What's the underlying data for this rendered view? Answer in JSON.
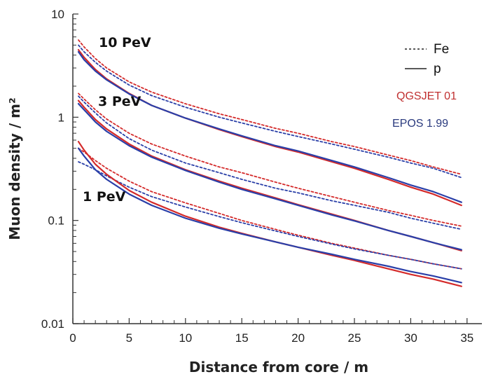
{
  "chart_data": {
    "type": "line",
    "xlabel": "Distance from core / m",
    "ylabel": "Muon density / m²",
    "xlim": [
      0,
      37
    ],
    "ylim": [
      0.01,
      10
    ],
    "yscale": "log",
    "x_ticks": [
      "0",
      "5",
      "10",
      "15",
      "20",
      "25",
      "30",
      "35"
    ],
    "y_ticks": [
      "0.01",
      "0.1",
      "1",
      "10"
    ],
    "grid": false,
    "energy_labels": [
      "10 PeV",
      "3 PeV",
      "1 PeV"
    ],
    "legend": {
      "placement": "top-right",
      "line_styles": [
        {
          "label": "Fe",
          "style": "dashed"
        },
        {
          "label": "p",
          "style": "solid"
        }
      ],
      "models": [
        {
          "label": "QGSJET 01",
          "color": "#d42a2a"
        },
        {
          "label": "EPOS 1.99",
          "color": "#2a3fa8"
        }
      ]
    },
    "colors": {
      "QGSJET 01": "#d42a2a",
      "EPOS 1.99": "#2a3fa8",
      "axis": "#333333"
    },
    "x": [
      0.5,
      1,
      2,
      3,
      5,
      7,
      10,
      13,
      15,
      18,
      20,
      23,
      25,
      28,
      30,
      32,
      34.5
    ],
    "series": [
      {
        "energy": "10 PeV",
        "model": "QGSJET 01",
        "primary": "Fe",
        "values": [
          5.6,
          4.8,
          3.7,
          3.0,
          2.2,
          1.75,
          1.35,
          1.08,
          0.95,
          0.78,
          0.7,
          0.58,
          0.52,
          0.43,
          0.38,
          0.33,
          0.28
        ]
      },
      {
        "energy": "10 PeV",
        "model": "EPOS 1.99",
        "primary": "Fe",
        "values": [
          5.0,
          4.3,
          3.4,
          2.8,
          2.05,
          1.62,
          1.25,
          1.0,
          0.88,
          0.73,
          0.65,
          0.55,
          0.49,
          0.41,
          0.36,
          0.32,
          0.26
        ]
      },
      {
        "energy": "10 PeV",
        "model": "QGSJET 01",
        "primary": "p",
        "values": [
          4.5,
          3.8,
          2.9,
          2.35,
          1.7,
          1.3,
          0.98,
          0.76,
          0.65,
          0.52,
          0.46,
          0.37,
          0.32,
          0.25,
          0.21,
          0.18,
          0.14
        ]
      },
      {
        "energy": "10 PeV",
        "model": "EPOS 1.99",
        "primary": "p",
        "values": [
          4.3,
          3.6,
          2.8,
          2.3,
          1.68,
          1.3,
          0.98,
          0.77,
          0.66,
          0.53,
          0.47,
          0.38,
          0.33,
          0.26,
          0.22,
          0.19,
          0.15
        ]
      },
      {
        "energy": "3 PeV",
        "model": "QGSJET 01",
        "primary": "Fe",
        "values": [
          1.7,
          1.5,
          1.18,
          0.96,
          0.7,
          0.55,
          0.42,
          0.33,
          0.29,
          0.235,
          0.205,
          0.17,
          0.15,
          0.125,
          0.112,
          0.1,
          0.088
        ]
      },
      {
        "energy": "3 PeV",
        "model": "EPOS 1.99",
        "primary": "Fe",
        "values": [
          1.6,
          1.4,
          1.1,
          0.88,
          0.62,
          0.48,
          0.36,
          0.29,
          0.25,
          0.205,
          0.185,
          0.155,
          0.14,
          0.12,
          0.105,
          0.094,
          0.082
        ]
      },
      {
        "energy": "3 PeV",
        "model": "QGSJET 01",
        "primary": "p",
        "values": [
          1.45,
          1.25,
          0.95,
          0.77,
          0.55,
          0.42,
          0.31,
          0.24,
          0.205,
          0.165,
          0.142,
          0.115,
          0.1,
          0.08,
          0.07,
          0.061,
          0.051
        ]
      },
      {
        "energy": "3 PeV",
        "model": "EPOS 1.99",
        "primary": "p",
        "values": [
          1.35,
          1.18,
          0.9,
          0.73,
          0.53,
          0.41,
          0.305,
          0.235,
          0.2,
          0.162,
          0.14,
          0.113,
          0.099,
          0.08,
          0.07,
          0.061,
          0.052
        ]
      },
      {
        "energy": "1 PeV",
        "model": "QGSJET 01",
        "primary": "Fe",
        "values": [
          0.5,
          0.46,
          0.38,
          0.32,
          0.24,
          0.19,
          0.148,
          0.117,
          0.1,
          0.082,
          0.072,
          0.06,
          0.054,
          0.046,
          0.042,
          0.038,
          0.034
        ]
      },
      {
        "energy": "1 PeV",
        "model": "EPOS 1.99",
        "primary": "Fe",
        "values": [
          0.37,
          0.35,
          0.31,
          0.27,
          0.21,
          0.17,
          0.135,
          0.109,
          0.095,
          0.079,
          0.07,
          0.059,
          0.053,
          0.046,
          0.042,
          0.038,
          0.034
        ]
      },
      {
        "energy": "1 PeV",
        "model": "QGSJET 01",
        "primary": "p",
        "values": [
          0.58,
          0.48,
          0.35,
          0.28,
          0.195,
          0.15,
          0.11,
          0.086,
          0.075,
          0.062,
          0.055,
          0.046,
          0.041,
          0.034,
          0.03,
          0.027,
          0.023
        ]
      },
      {
        "energy": "1 PeV",
        "model": "EPOS 1.99",
        "primary": "p",
        "values": [
          0.5,
          0.42,
          0.31,
          0.25,
          0.18,
          0.14,
          0.105,
          0.084,
          0.074,
          0.062,
          0.055,
          0.047,
          0.042,
          0.036,
          0.032,
          0.029,
          0.025
        ]
      }
    ]
  }
}
